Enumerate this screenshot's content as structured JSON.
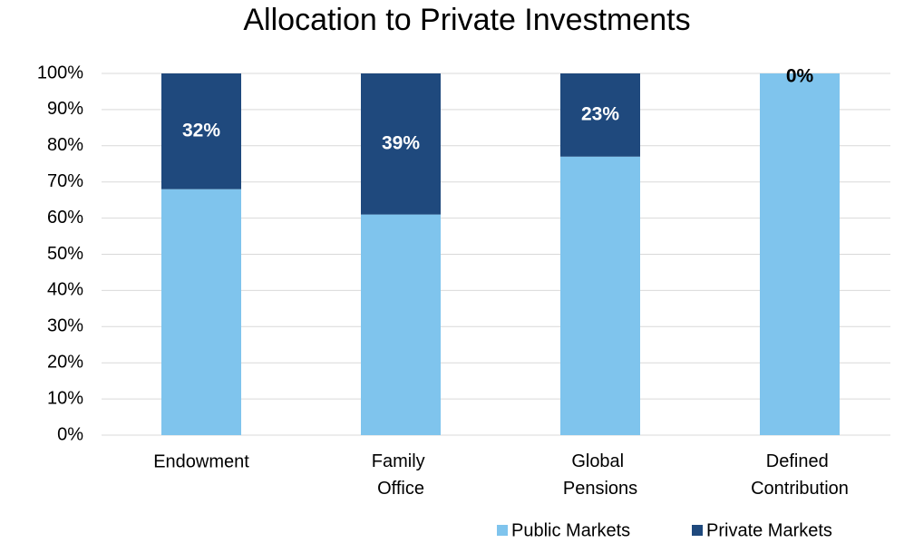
{
  "chart_data": {
    "type": "stacked_bar",
    "title": "Allocation to Private Investments",
    "categories": [
      "Endowment",
      "Family Office",
      "Global Pensions",
      "Defined Contribution"
    ],
    "series": [
      {
        "name": "Public Markets",
        "color": "#7fc4ed",
        "values": [
          68,
          61,
          77,
          100
        ]
      },
      {
        "name": "Private Markets",
        "color": "#1f497d",
        "values": [
          32,
          39,
          23,
          0
        ],
        "value_labels": [
          "32%",
          "39%",
          "23%",
          "0%"
        ]
      }
    ],
    "ylim": [
      0,
      100
    ],
    "yticks": [
      {
        "value": 0,
        "label": "0%"
      },
      {
        "value": 10,
        "label": "10%"
      },
      {
        "value": 20,
        "label": "20%"
      },
      {
        "value": 30,
        "label": "30%"
      },
      {
        "value": 40,
        "label": "40%"
      },
      {
        "value": 50,
        "label": "50%"
      },
      {
        "value": 60,
        "label": "60%"
      },
      {
        "value": 70,
        "label": "70%"
      },
      {
        "value": 80,
        "label": "80%"
      },
      {
        "value": 90,
        "label": "90%"
      },
      {
        "value": 100,
        "label": "100%"
      }
    ],
    "grid": true,
    "legend": "bottom-right"
  }
}
